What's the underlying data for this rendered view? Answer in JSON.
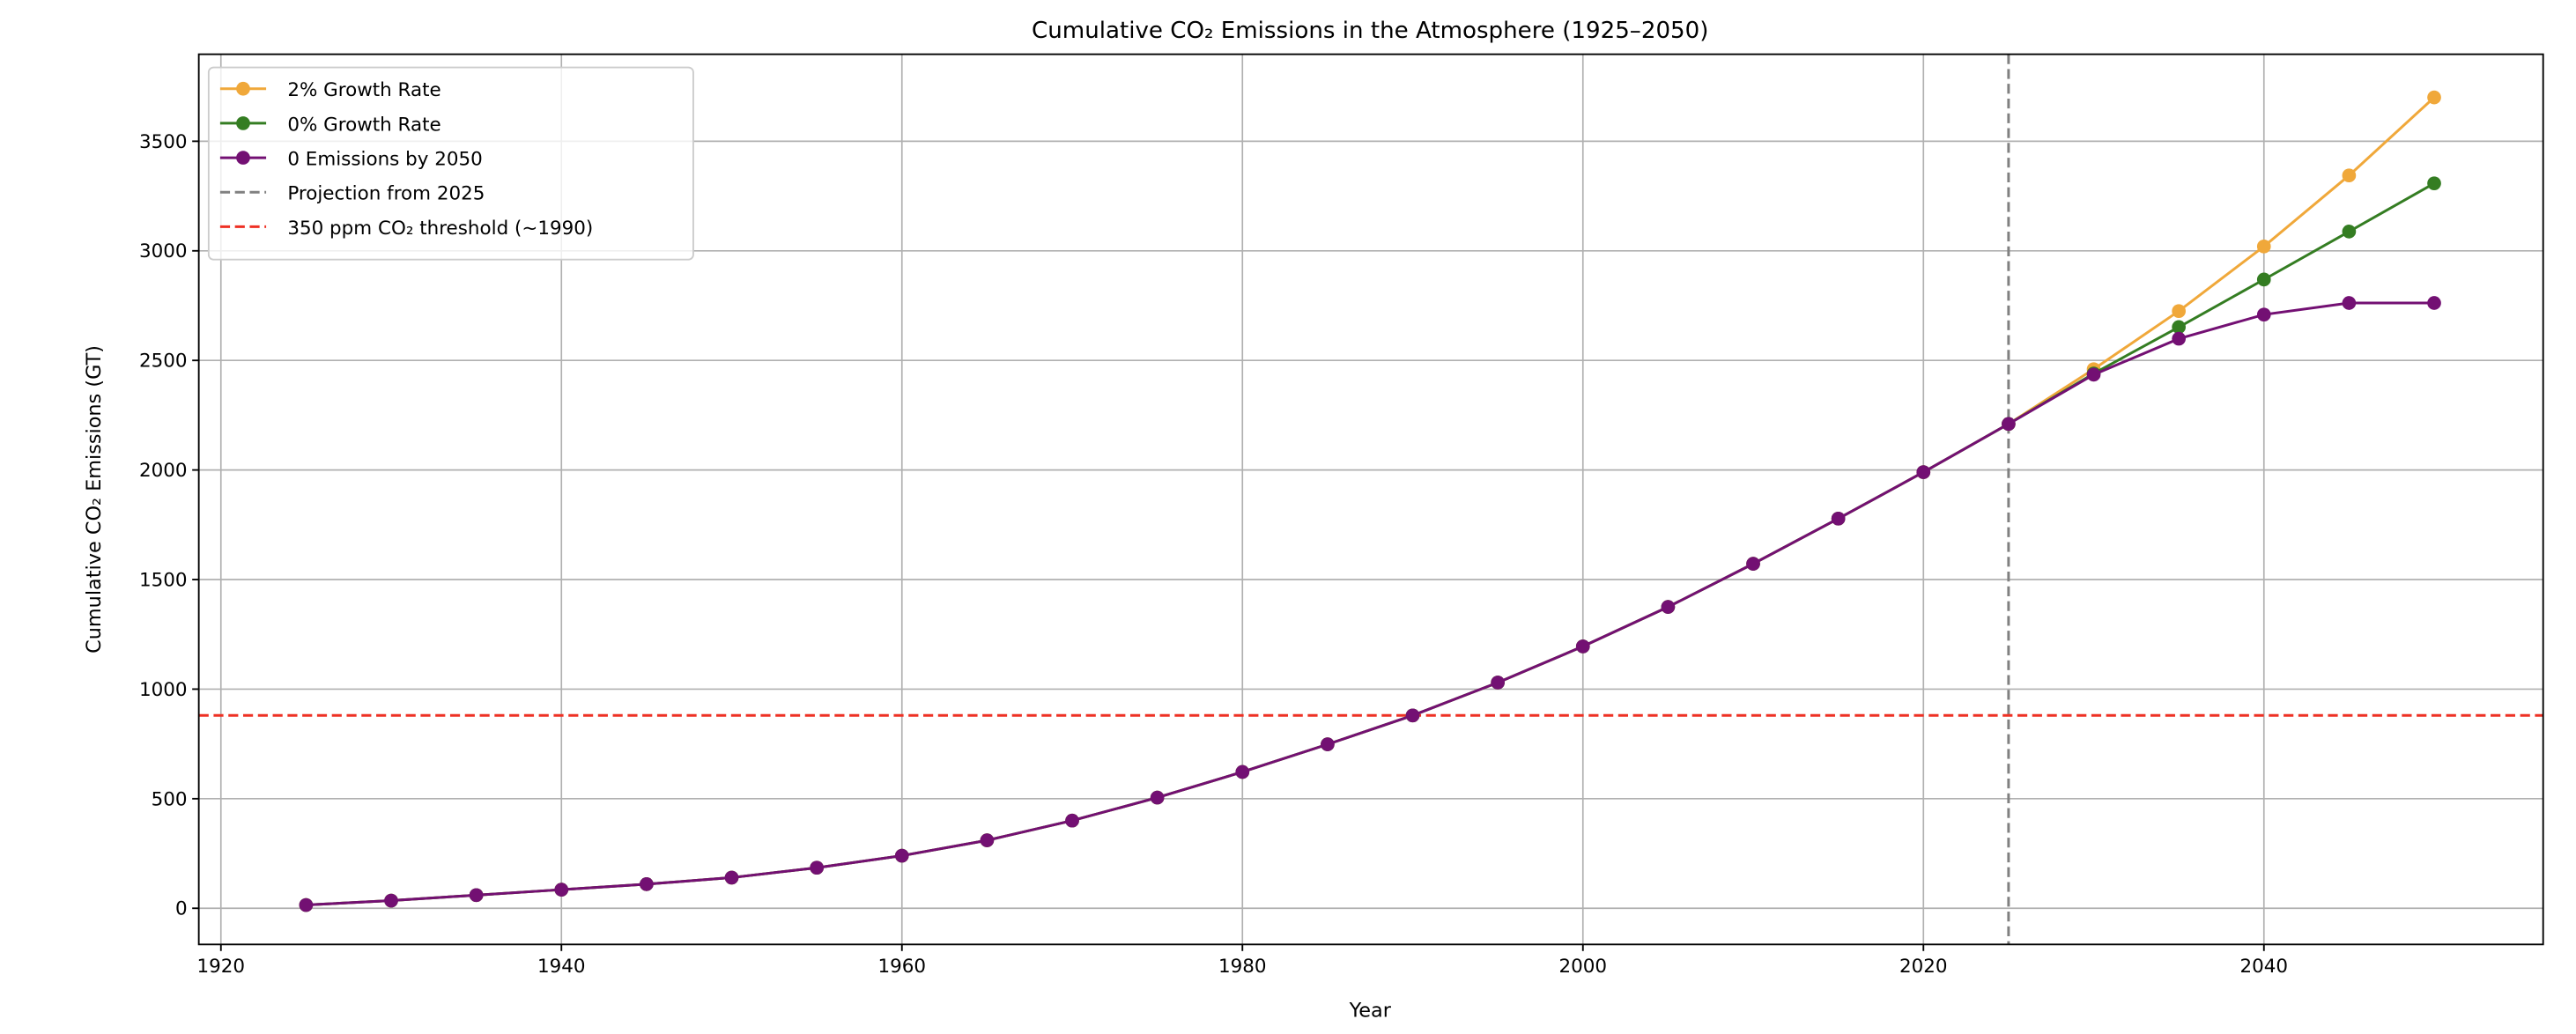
{
  "chart_data": {
    "type": "line",
    "title": "Cumulative CO₂ Emissions in the Atmosphere (1925–2050)",
    "xlabel": "Year",
    "ylabel": "Cumulative CO₂ Emissions (GT)",
    "xlim": [
      1918.7,
      2056.4
    ],
    "ylim": [
      -165,
      3897
    ],
    "xticks": [
      1920,
      1940,
      1960,
      1980,
      2000,
      2020,
      2040
    ],
    "yticks": [
      0,
      500,
      1000,
      1500,
      2000,
      2500,
      3000,
      3500
    ],
    "grid": true,
    "legend_position": "top-left",
    "series": [
      {
        "name": "2% Growth Rate",
        "color": "#f0a83a",
        "x": [
          1925,
          1930,
          1935,
          1940,
          1945,
          1950,
          1955,
          1960,
          1965,
          1970,
          1975,
          1980,
          1985,
          1990,
          1995,
          2000,
          2005,
          2010,
          2015,
          2020,
          2025,
          2030,
          2035,
          2040,
          2045,
          2050
        ],
        "y": [
          15,
          35,
          60,
          85,
          110,
          140,
          185,
          240,
          310,
          400,
          505,
          622,
          748,
          880,
          1030,
          1195,
          1375,
          1572,
          1778,
          1990,
          2210,
          2460,
          2725,
          3020,
          3344,
          3700
        ]
      },
      {
        "name": "0% Growth Rate",
        "color": "#347d22",
        "x": [
          1925,
          1930,
          1935,
          1940,
          1945,
          1950,
          1955,
          1960,
          1965,
          1970,
          1975,
          1980,
          1985,
          1990,
          1995,
          2000,
          2005,
          2010,
          2015,
          2020,
          2025,
          2030,
          2035,
          2040,
          2045,
          2050
        ],
        "y": [
          15,
          35,
          60,
          85,
          110,
          140,
          185,
          240,
          310,
          400,
          505,
          622,
          748,
          880,
          1030,
          1195,
          1375,
          1572,
          1778,
          1990,
          2210,
          2440,
          2652,
          2869,
          3088,
          3308
        ]
      },
      {
        "name": "0 Emissions by 2050",
        "color": "#731073",
        "x": [
          1925,
          1930,
          1935,
          1940,
          1945,
          1950,
          1955,
          1960,
          1965,
          1970,
          1975,
          1980,
          1985,
          1990,
          1995,
          2000,
          2005,
          2010,
          2015,
          2020,
          2025,
          2030,
          2035,
          2040,
          2045,
          2050
        ],
        "y": [
          15,
          35,
          60,
          85,
          110,
          140,
          185,
          240,
          310,
          400,
          505,
          622,
          748,
          880,
          1030,
          1195,
          1375,
          1572,
          1778,
          1990,
          2210,
          2435,
          2599,
          2709,
          2762,
          2762
        ]
      }
    ],
    "reference_lines": [
      {
        "name": "Projection from 2025",
        "orientation": "vertical",
        "value": 2025,
        "color": "#808080",
        "style": "dashed"
      },
      {
        "name": "350 ppm CO₂ threshold (~1990)",
        "orientation": "horizontal",
        "value": 880,
        "color": "#ee3124",
        "style": "dashed"
      }
    ]
  }
}
